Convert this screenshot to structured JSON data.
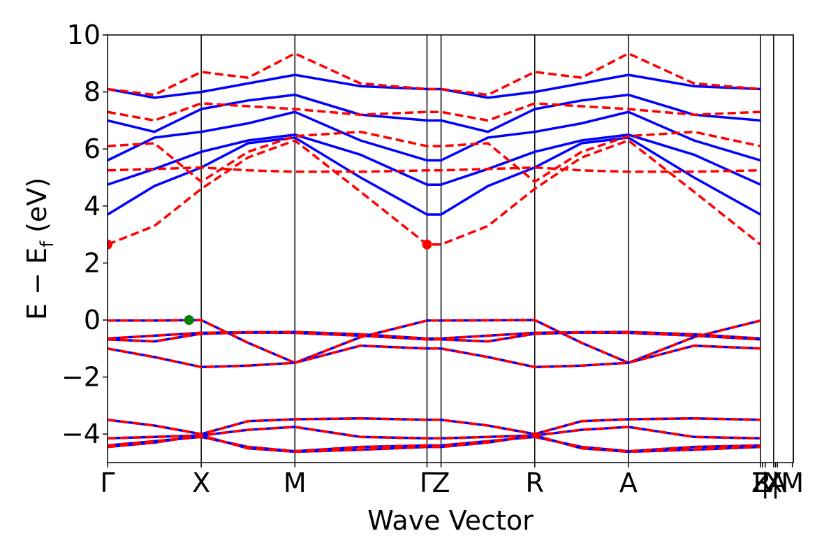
{
  "chart_data": {
    "type": "line",
    "title": "",
    "xlabel": "Wave Vector",
    "ylabel": "E − E",
    "ylabel_sub": "f",
    "ylabel_unit": " (eV)",
    "ylim": [
      -5,
      10
    ],
    "yticks": [
      -4,
      -2,
      0,
      2,
      4,
      6,
      8,
      10
    ],
    "ytick_labels": [
      "−4",
      "−2",
      "0",
      "2",
      "4",
      "6",
      "8",
      "10"
    ],
    "xlim": [
      0,
      7.32
    ],
    "kpath": [
      {
        "label": "Γ",
        "x": 0.0
      },
      {
        "label": "X",
        "x": 1.0
      },
      {
        "label": "M",
        "x": 2.0
      },
      {
        "label": "Γ",
        "x": 3.41
      },
      {
        "label": "Z",
        "x": 3.56
      },
      {
        "label": "R",
        "x": 4.56
      },
      {
        "label": "A",
        "x": 5.56
      },
      {
        "label": "Z",
        "x": 6.97
      },
      {
        "label": "R",
        "x": 6.99
      },
      {
        "label": "|",
        "x": 7.02
      },
      {
        "label": "X",
        "x": 7.11
      },
      {
        "label": "|",
        "x": 7.13
      },
      {
        "label": "A",
        "x": 7.15
      },
      {
        "label": "M",
        "x": 7.31
      }
    ],
    "vlines": [
      1.0,
      2.0,
      3.41,
      3.56,
      4.56,
      5.56,
      6.97,
      7.11,
      7.32
    ],
    "colors": {
      "spin_up": "#0000ff",
      "spin_down": "#ff0000",
      "vbm": "#008000",
      "cbm": "#ff0000"
    },
    "series": [],
    "valence_bands": [
      {
        "x": [
          0,
          0.5,
          1.0,
          1.5,
          2.0,
          2.7,
          3.41,
          3.56,
          4.06,
          4.56,
          5.06,
          5.56,
          6.26,
          6.97
        ],
        "y": [
          -0.02,
          -0.02,
          0.0,
          -0.8,
          -1.5,
          -0.6,
          -0.02,
          -0.02,
          -0.01,
          0.0,
          -0.8,
          -1.5,
          -0.6,
          -0.02
        ]
      },
      {
        "x": [
          0,
          0.5,
          1.0,
          1.5,
          2.0,
          2.7,
          3.41,
          3.56,
          4.06,
          4.56,
          5.06,
          5.56,
          6.26,
          6.97
        ],
        "y": [
          -0.65,
          -0.55,
          -0.45,
          -0.43,
          -0.42,
          -0.5,
          -0.65,
          -0.65,
          -0.55,
          -0.45,
          -0.43,
          -0.42,
          -0.5,
          -0.65
        ]
      },
      {
        "x": [
          0,
          0.5,
          1.0,
          1.5,
          2.0,
          2.7,
          3.41,
          3.56,
          4.06,
          4.56,
          5.06,
          5.56,
          6.26,
          6.97
        ],
        "y": [
          -0.68,
          -0.75,
          -0.48,
          -0.44,
          -0.45,
          -0.55,
          -0.68,
          -0.68,
          -0.75,
          -0.48,
          -0.44,
          -0.45,
          -0.55,
          -0.68
        ]
      },
      {
        "x": [
          0,
          0.5,
          1.0,
          1.5,
          2.0,
          2.7,
          3.41,
          3.56,
          4.06,
          4.56,
          5.06,
          5.56,
          6.26,
          6.97
        ],
        "y": [
          -1.0,
          -1.3,
          -1.65,
          -1.6,
          -1.5,
          -0.9,
          -1.0,
          -1.0,
          -1.3,
          -1.65,
          -1.6,
          -1.5,
          -0.9,
          -1.0
        ]
      },
      {
        "x": [
          0,
          0.5,
          1.0,
          1.5,
          2.0,
          2.7,
          3.41,
          3.56,
          4.06,
          4.56,
          5.06,
          5.56,
          6.26,
          6.97
        ],
        "y": [
          -3.5,
          -3.7,
          -4.0,
          -3.55,
          -3.48,
          -3.45,
          -3.5,
          -3.5,
          -3.7,
          -4.0,
          -3.55,
          -3.48,
          -3.45,
          -3.5
        ]
      },
      {
        "x": [
          0,
          0.5,
          1.0,
          1.5,
          2.0,
          2.7,
          3.41,
          3.56,
          4.06,
          4.56,
          5.06,
          5.56,
          6.26,
          6.97
        ],
        "y": [
          -4.15,
          -4.1,
          -4.05,
          -3.85,
          -3.75,
          -4.1,
          -4.15,
          -4.15,
          -4.1,
          -4.05,
          -3.85,
          -3.75,
          -4.1,
          -4.15
        ]
      },
      {
        "x": [
          0,
          0.5,
          1.0,
          1.5,
          2.0,
          2.7,
          3.41,
          3.56,
          4.06,
          4.56,
          5.06,
          5.56,
          6.26,
          6.97
        ],
        "y": [
          -4.4,
          -4.25,
          -4.1,
          -4.45,
          -4.6,
          -4.45,
          -4.4,
          -4.4,
          -4.25,
          -4.1,
          -4.45,
          -4.6,
          -4.45,
          -4.4
        ]
      },
      {
        "x": [
          0,
          0.5,
          1.0,
          1.5,
          2.0,
          2.7,
          3.41,
          3.56,
          4.06,
          4.56,
          5.06,
          5.56,
          6.26,
          6.97
        ],
        "y": [
          -4.45,
          -4.3,
          -4.05,
          -4.5,
          -4.62,
          -4.55,
          -4.45,
          -4.45,
          -4.3,
          -4.05,
          -4.5,
          -4.62,
          -4.55,
          -4.45
        ]
      }
    ],
    "conduction_spin_down": [
      {
        "x": [
          0,
          0.5,
          1.0,
          1.5,
          2.0,
          2.7,
          3.41,
          3.56,
          4.06,
          4.56,
          5.06,
          5.56,
          6.26,
          6.97
        ],
        "y": [
          2.65,
          3.3,
          4.6,
          5.7,
          6.3,
          4.5,
          2.65,
          2.65,
          3.3,
          4.6,
          5.7,
          6.3,
          4.5,
          2.65
        ]
      },
      {
        "x": [
          0,
          0.5,
          1.0,
          1.5,
          2.0,
          2.7,
          3.41,
          3.56,
          4.06,
          4.56,
          5.06,
          5.56,
          6.26,
          6.97
        ],
        "y": [
          5.25,
          5.3,
          5.35,
          5.25,
          5.2,
          5.2,
          5.25,
          5.25,
          5.3,
          5.35,
          5.25,
          5.2,
          5.2,
          5.25
        ]
      },
      {
        "x": [
          0,
          0.5,
          1.0,
          1.5,
          2.0,
          2.7,
          3.41,
          3.56,
          4.06,
          4.56,
          5.06,
          5.56,
          6.26,
          6.97
        ],
        "y": [
          6.1,
          6.2,
          4.85,
          5.9,
          6.45,
          6.6,
          6.1,
          6.1,
          6.2,
          4.85,
          5.9,
          6.45,
          6.6,
          6.1
        ]
      },
      {
        "x": [
          0,
          0.5,
          1.0,
          1.5,
          2.0,
          2.7,
          3.41,
          3.56,
          4.06,
          4.56,
          5.06,
          5.56,
          6.26,
          6.97
        ],
        "y": [
          7.3,
          7.0,
          7.6,
          7.5,
          7.4,
          7.2,
          7.3,
          7.3,
          7.0,
          7.6,
          7.5,
          7.4,
          7.2,
          7.3
        ]
      },
      {
        "x": [
          0,
          0.5,
          1.0,
          1.5,
          2.0,
          2.7,
          3.41,
          3.56,
          4.06,
          4.56,
          5.06,
          5.56,
          6.26,
          6.97
        ],
        "y": [
          8.1,
          7.9,
          8.7,
          8.5,
          9.35,
          8.3,
          8.1,
          8.1,
          7.9,
          8.7,
          8.5,
          9.35,
          8.3,
          8.1
        ]
      }
    ],
    "conduction_spin_up": [
      {
        "x": [
          0,
          0.5,
          1.0,
          1.5,
          2.0,
          2.7,
          3.41,
          3.56,
          4.06,
          4.56,
          5.06,
          5.56,
          6.26,
          6.97
        ],
        "y": [
          3.7,
          4.7,
          5.35,
          6.2,
          6.4,
          5.0,
          3.7,
          3.7,
          4.7,
          5.35,
          6.2,
          6.4,
          5.0,
          3.7
        ]
      },
      {
        "x": [
          0,
          0.5,
          1.0,
          1.5,
          2.0,
          2.7,
          3.41,
          3.56,
          4.06,
          4.56,
          5.06,
          5.56,
          6.26,
          6.97
        ],
        "y": [
          4.75,
          5.3,
          5.9,
          6.3,
          6.5,
          5.8,
          4.75,
          4.75,
          5.3,
          5.9,
          6.3,
          6.5,
          5.8,
          4.75
        ]
      },
      {
        "x": [
          0,
          0.5,
          1.0,
          1.5,
          2.0,
          2.7,
          3.41,
          3.56,
          4.06,
          4.56,
          5.06,
          5.56,
          6.26,
          6.97
        ],
        "y": [
          5.6,
          6.4,
          6.6,
          6.9,
          7.3,
          6.3,
          5.6,
          5.6,
          6.4,
          6.6,
          6.9,
          7.3,
          6.3,
          5.6
        ]
      },
      {
        "x": [
          0,
          0.5,
          1.0,
          1.5,
          2.0,
          2.7,
          3.41,
          3.56,
          4.06,
          4.56,
          5.06,
          5.56,
          6.26,
          6.97
        ],
        "y": [
          7.0,
          6.6,
          7.4,
          7.7,
          7.9,
          7.2,
          7.0,
          7.0,
          6.6,
          7.4,
          7.7,
          7.9,
          7.2,
          7.0
        ]
      },
      {
        "x": [
          0,
          0.5,
          1.0,
          1.5,
          2.0,
          2.7,
          3.41,
          3.56,
          4.06,
          4.56,
          5.06,
          5.56,
          6.26,
          6.97
        ],
        "y": [
          8.1,
          7.8,
          8.0,
          8.3,
          8.6,
          8.2,
          8.1,
          8.1,
          7.8,
          8.0,
          8.3,
          8.6,
          8.2,
          8.1
        ]
      }
    ],
    "markers": [
      {
        "name": "vbm",
        "x": 0.87,
        "y": 0.0,
        "color": "#008000"
      },
      {
        "name": "cbm-1",
        "x": 0.0,
        "y": 2.65,
        "color": "#ff0000"
      },
      {
        "name": "cbm-2",
        "x": 3.41,
        "y": 2.65,
        "color": "#ff0000"
      }
    ]
  }
}
